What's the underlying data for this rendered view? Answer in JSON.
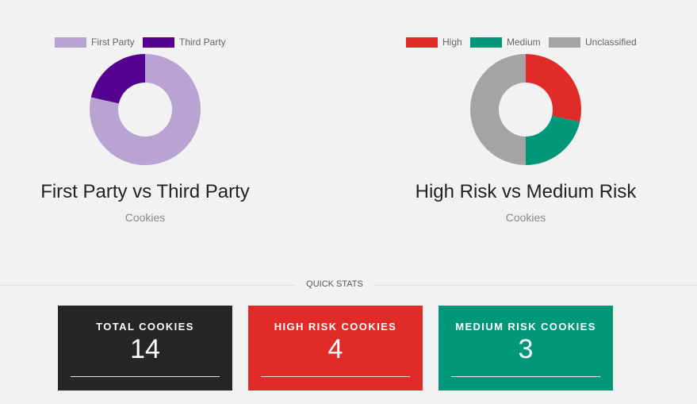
{
  "chart_data": [
    {
      "type": "pie",
      "title": "First Party vs Third Party",
      "subtitle": "Cookies",
      "legend_position": "top",
      "categories": [
        "First Party",
        "Third Party"
      ],
      "values": [
        11,
        3
      ],
      "colors": [
        "#b9a3d2",
        "#560090"
      ]
    },
    {
      "type": "pie",
      "title": "High Risk vs Medium Risk",
      "subtitle": "Cookies",
      "legend_position": "top",
      "categories": [
        "High",
        "Medium",
        "Unclassified"
      ],
      "values": [
        4,
        3,
        7
      ],
      "colors": [
        "#e12b29",
        "#009879",
        "#a4a4a4"
      ]
    }
  ],
  "quick_stats": {
    "label": "QUICK STATS",
    "cards": [
      {
        "label": "TOTAL COOKIES",
        "value": "14",
        "color": "#262528"
      },
      {
        "label": "HIGH RISK COOKIES",
        "value": "4",
        "color": "#e12b29"
      },
      {
        "label": "MEDIUM RISK COOKIES",
        "value": "3",
        "color": "#009879"
      }
    ]
  }
}
